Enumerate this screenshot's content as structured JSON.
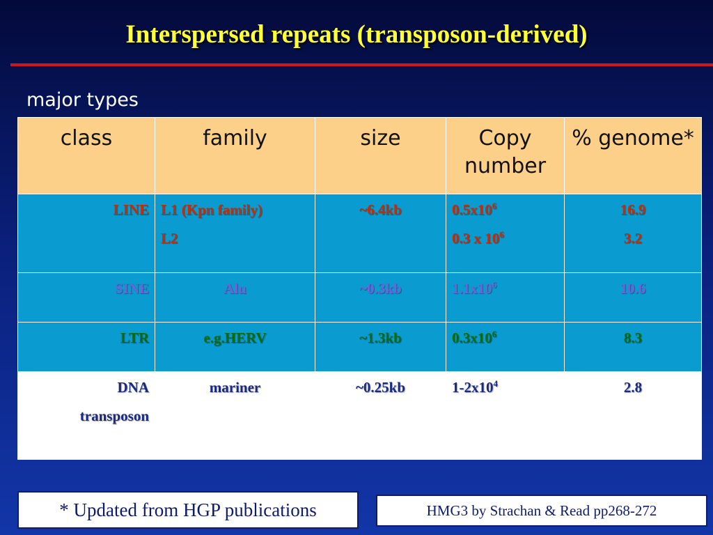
{
  "title": "Interspersed repeats (transposon-derived)",
  "subtitle": "major types",
  "table": {
    "header": [
      "class",
      "family",
      "size",
      "Copy number",
      "% genome*"
    ],
    "rows": [
      {
        "class": "LINE",
        "family": [
          "L1 (Kpn family)",
          "L2"
        ],
        "size": "~6.4kb",
        "copy": [
          {
            "base": "0.5x10",
            "exp": "6"
          },
          {
            "base": "0.3 x 10",
            "exp": "6"
          }
        ],
        "genome": [
          16.9,
          3.2
        ],
        "color": "#cc2a00"
      },
      {
        "class": "SINE",
        "family": [
          "Alu"
        ],
        "size": "~0.3kb",
        "copy": [
          {
            "base": "1.1x10",
            "exp": "6"
          }
        ],
        "genome": [
          10.6
        ],
        "color": "#6f63d8"
      },
      {
        "class": "LTR",
        "family": [
          "e.g.HERV"
        ],
        "size": "~1.3kb",
        "copy": [
          {
            "base": "0.3x10",
            "exp": "6"
          }
        ],
        "genome": [
          8.3
        ],
        "color": "#0a6a0a"
      },
      {
        "class": "DNA transposon",
        "family": [
          "mariner"
        ],
        "size": "~0.25kb",
        "copy": [
          {
            "base": "1-2x10",
            "exp": "4"
          }
        ],
        "genome": [
          2.8
        ],
        "color": "#1a2a80"
      }
    ]
  },
  "footnote": "* Updated from HGP publications",
  "reference": "HMG3 by Strachan & Read pp268-272"
}
